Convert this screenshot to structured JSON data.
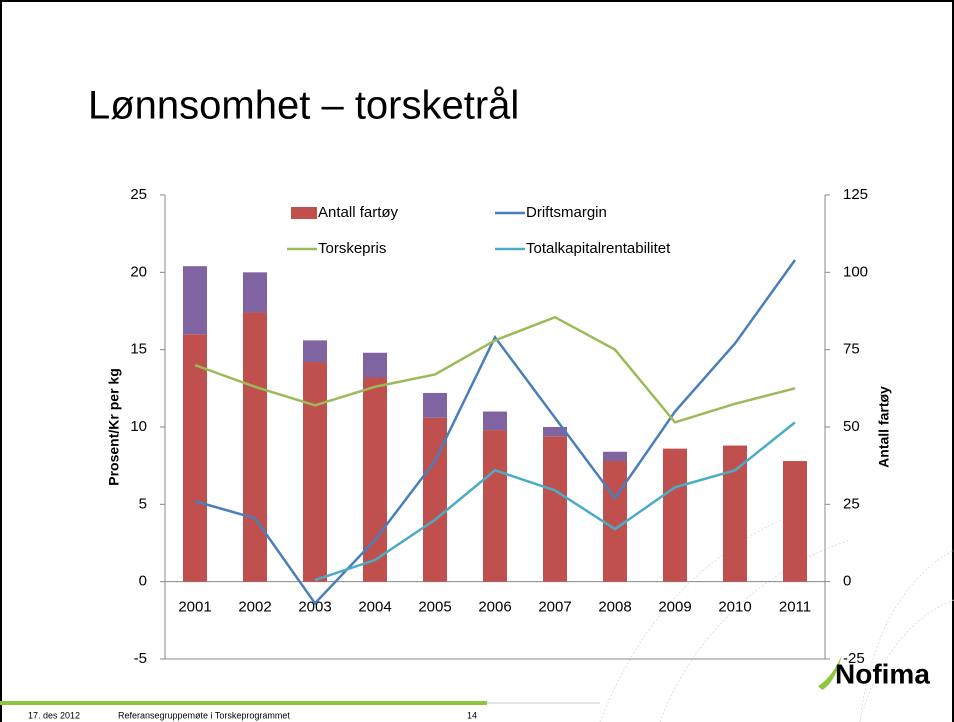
{
  "slide": {
    "title": "Lønnsomhet – torsketrål",
    "date": "17. des 2012",
    "event": "Referansegruppemøte  i Torskeprogrammet",
    "page": "14",
    "logo": "Nofima"
  },
  "chart_data": {
    "type": "bar",
    "categories": [
      "2001",
      "2002",
      "2003",
      "2004",
      "2005",
      "2006",
      "2007",
      "2008",
      "2009",
      "2010",
      "2011"
    ],
    "y_label": "Prosent/Kr per kg",
    "y2_label": "Antall fartøy",
    "ylim": [
      -5,
      25
    ],
    "yticks": [
      -5,
      0,
      5,
      10,
      15,
      20,
      25
    ],
    "y2lim": [
      -25,
      125
    ],
    "y2ticks": [
      -25,
      0,
      25,
      50,
      75,
      100,
      125
    ],
    "grid": false,
    "stacked": true,
    "series": [
      {
        "name": "Antall fartøy",
        "type": "bar",
        "axis": "y2",
        "color": "#c0504d",
        "values": [
          80,
          87,
          71,
          66,
          53,
          49,
          47,
          39,
          43,
          44,
          39
        ]
      },
      {
        "type": "bar",
        "axis": "y2",
        "color": "#8064a2",
        "values": [
          22,
          13,
          7,
          8,
          8,
          6,
          3,
          3,
          0,
          0,
          0
        ]
      },
      {
        "name": "Driftsmargin",
        "type": "line",
        "color": "#4a7ebb",
        "values": [
          5.2,
          4.1,
          -1.4,
          2.7,
          7.8,
          15.8,
          10.6,
          5.4,
          11,
          15.4,
          20.8
        ]
      },
      {
        "name": "Torskepris",
        "type": "line",
        "color": "#9bbb59",
        "values": [
          14.0,
          12.6,
          11.4,
          12.6,
          13.4,
          15.6,
          17.1,
          15.0,
          10.3,
          11.5,
          12.5
        ]
      },
      {
        "name": "Totalkapitalrentabilitet",
        "type": "line",
        "color": "#4bacc6",
        "values": [
          null,
          null,
          0.1,
          1.4,
          4.0,
          7.2,
          5.9,
          3.4,
          6.1,
          7.2,
          10.3
        ]
      }
    ]
  }
}
